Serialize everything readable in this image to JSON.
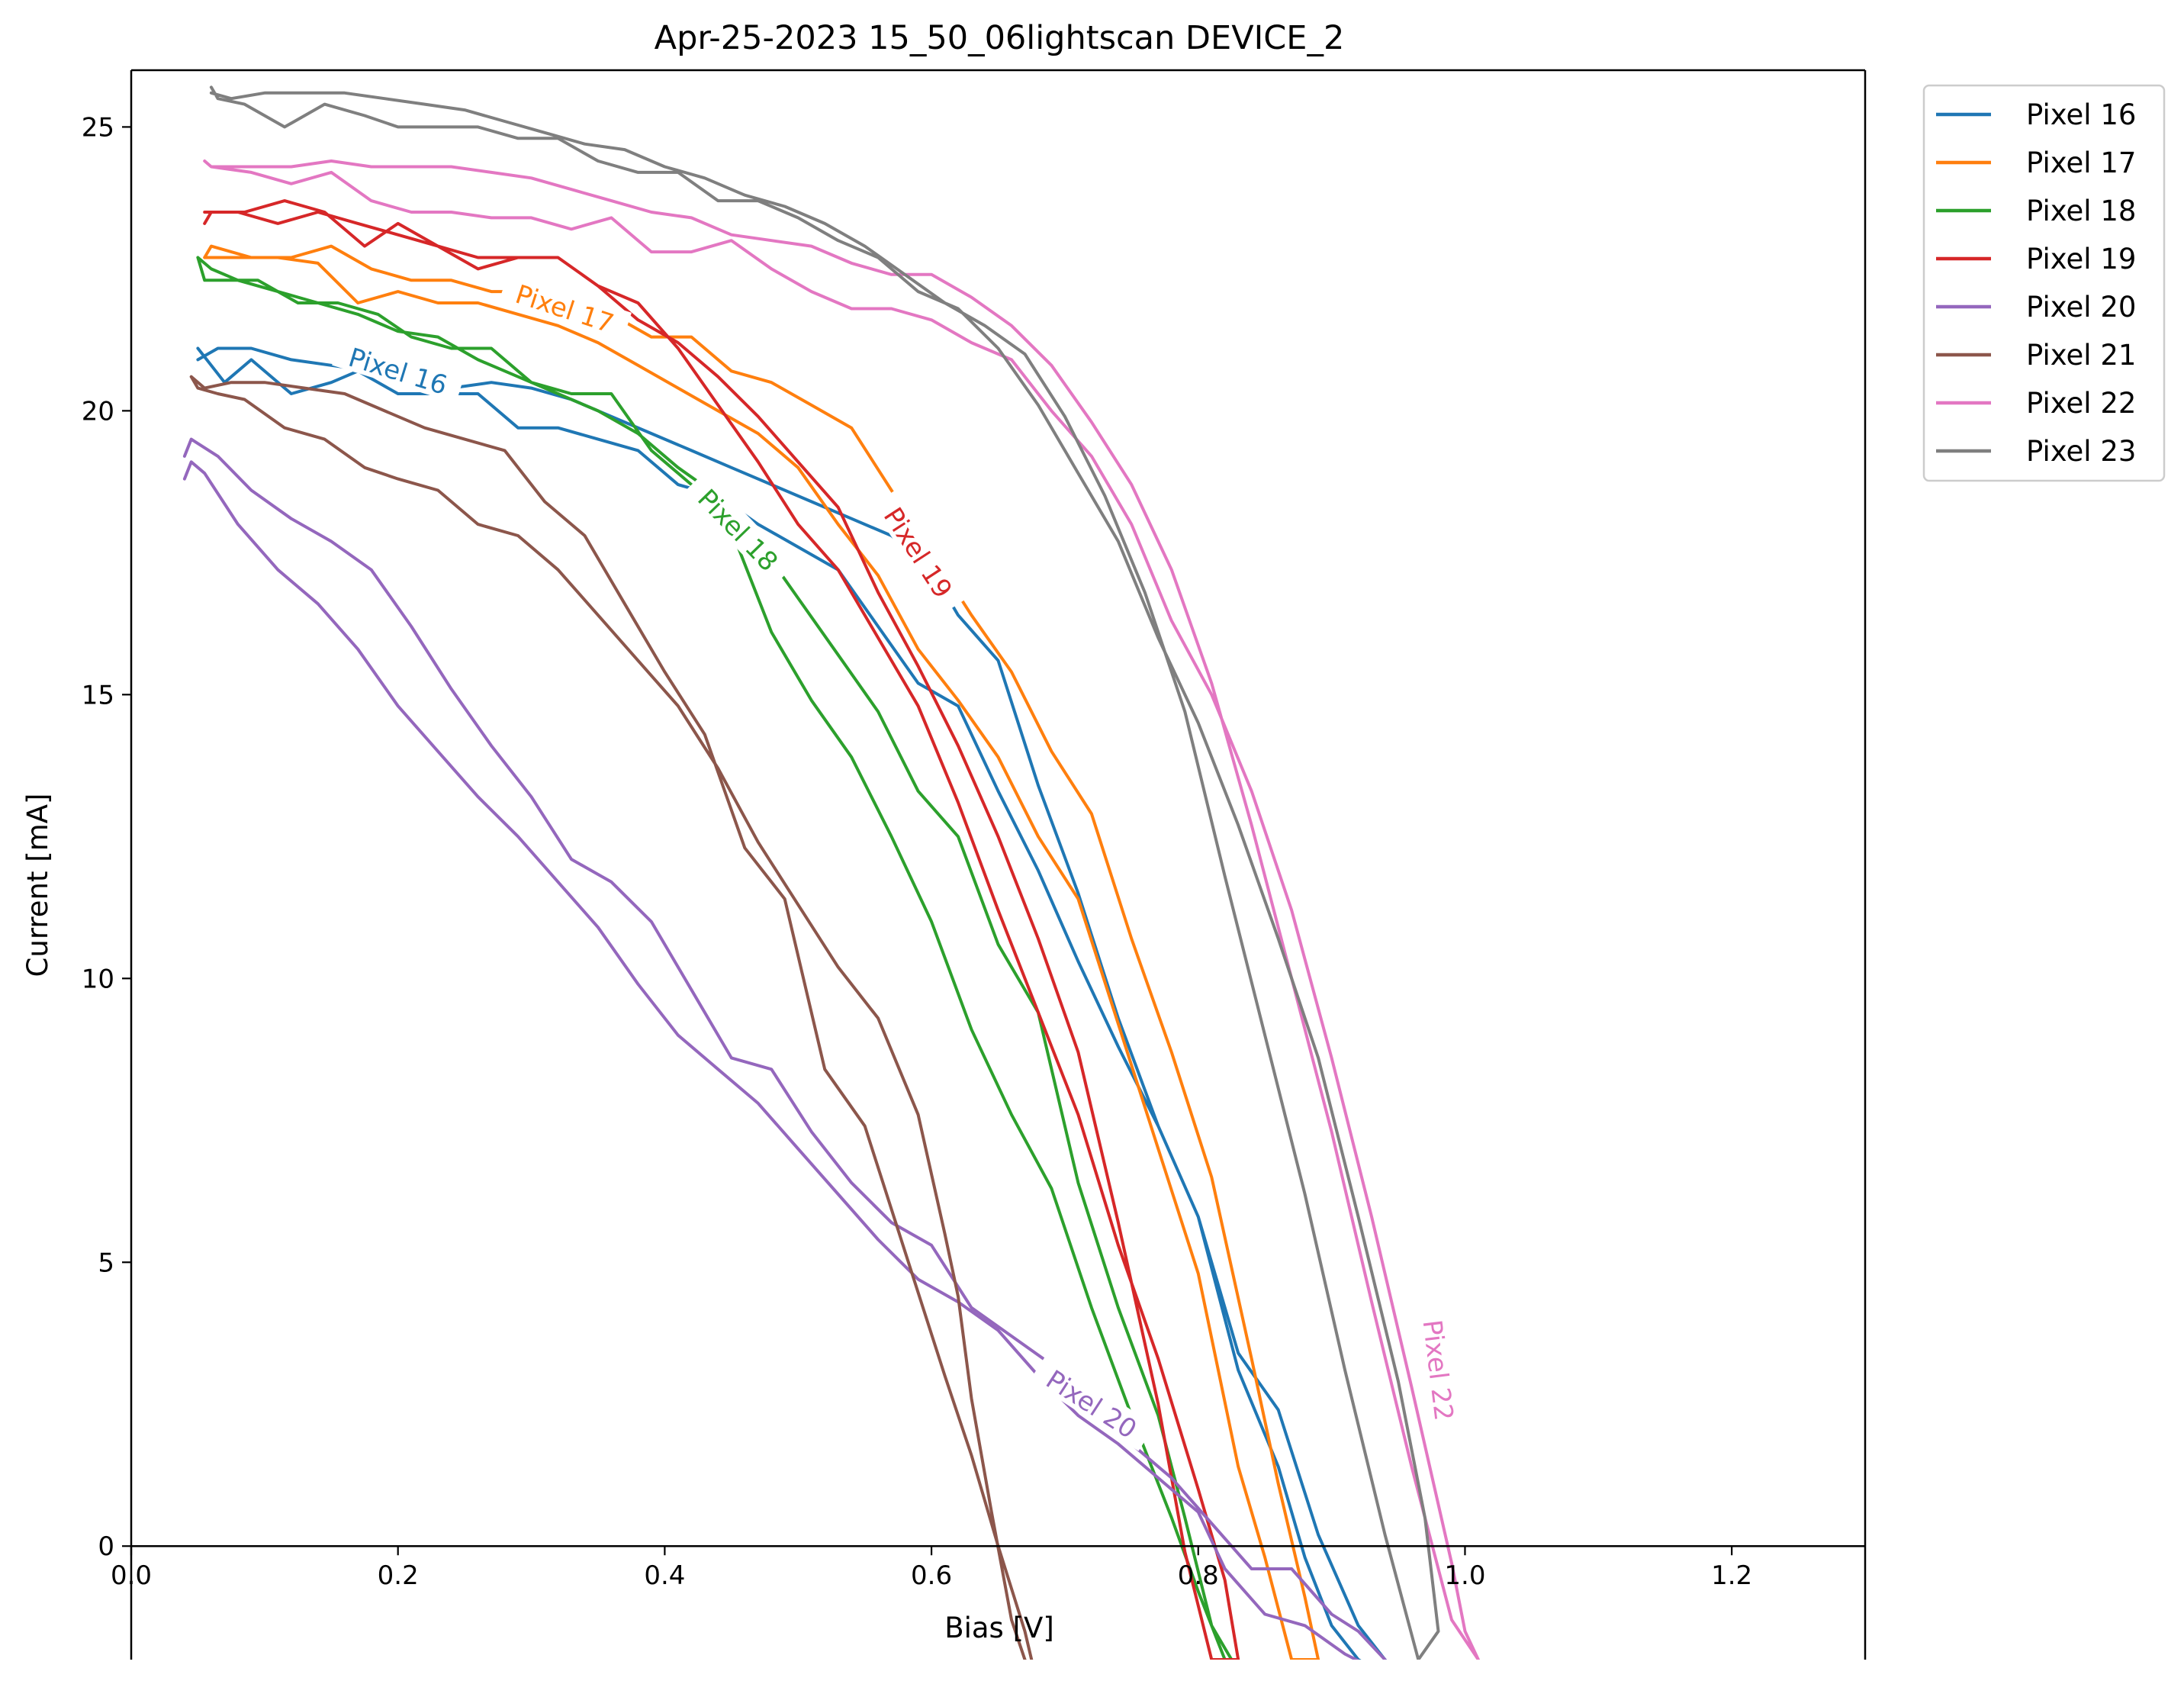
{
  "chart_data": {
    "type": "line",
    "title": "Apr-25-2023 15_50_06lightscan DEVICE_2",
    "xlabel": "Bias [V]",
    "ylabel": "Current [mA]",
    "xlim": [
      0.0,
      1.3
    ],
    "ylim": [
      -2.0,
      26.0
    ],
    "xticks": [
      0.0,
      0.2,
      0.4,
      0.6,
      0.8,
      1.0,
      1.2
    ],
    "xtick_labels": [
      "0.0",
      "0.2",
      "0.4",
      "0.6",
      "0.8",
      "1.0",
      "1.2"
    ],
    "yticks": [
      0,
      5,
      10,
      15,
      20,
      25
    ],
    "ytick_labels": [
      "0",
      "5",
      "10",
      "15",
      "20",
      "25"
    ],
    "grid": false,
    "legend_position": "outside-top-right",
    "series": [
      {
        "name": "Pixel 16",
        "color": "#1f77b4",
        "x": [
          0.05,
          0.06,
          0.07,
          0.09,
          0.12,
          0.15,
          0.17,
          0.2,
          0.23,
          0.26,
          0.29,
          0.32,
          0.35,
          0.38,
          0.41,
          0.44,
          0.47,
          0.5,
          0.53,
          0.56,
          0.59,
          0.62,
          0.65,
          0.68,
          0.71,
          0.74,
          0.77,
          0.8,
          0.83,
          0.86,
          0.88,
          0.9,
          0.92,
          0.935,
          0.95,
          0.92,
          0.89,
          0.86,
          0.83,
          0.8,
          0.77,
          0.74,
          0.71,
          0.68,
          0.65,
          0.62,
          0.6,
          0.57,
          0.54,
          0.51,
          0.48,
          0.45,
          0.42,
          0.39,
          0.36,
          0.33,
          0.3,
          0.27,
          0.24,
          0.21,
          0.18,
          0.15,
          0.12,
          0.09,
          0.065,
          0.05
        ],
        "y": [
          21.1,
          20.8,
          20.5,
          20.9,
          20.3,
          20.5,
          20.7,
          20.3,
          20.3,
          20.3,
          19.7,
          19.7,
          19.5,
          19.3,
          18.7,
          18.5,
          18.0,
          17.6,
          17.2,
          16.2,
          15.2,
          14.8,
          13.3,
          11.9,
          10.3,
          8.8,
          7.4,
          5.8,
          3.1,
          1.4,
          -0.2,
          -1.4,
          -2.0,
          -2.2,
          -2.3,
          -1.4,
          0.2,
          2.4,
          3.4,
          5.8,
          7.4,
          9.3,
          11.5,
          13.4,
          15.6,
          16.4,
          17.2,
          17.8,
          18.1,
          18.4,
          18.7,
          19.0,
          19.3,
          19.6,
          19.9,
          20.2,
          20.4,
          20.5,
          20.4,
          20.6,
          20.7,
          20.8,
          20.9,
          21.1,
          21.1,
          20.9
        ]
      },
      {
        "name": "Pixel 17",
        "color": "#ff7f0e",
        "x": [
          0.055,
          0.06,
          0.09,
          0.12,
          0.15,
          0.18,
          0.21,
          0.24,
          0.27,
          0.3,
          0.33,
          0.36,
          0.39,
          0.42,
          0.45,
          0.48,
          0.51,
          0.54,
          0.57,
          0.6,
          0.63,
          0.66,
          0.69,
          0.72,
          0.75,
          0.78,
          0.81,
          0.84,
          0.86,
          0.88,
          0.89,
          0.87,
          0.85,
          0.83,
          0.8,
          0.77,
          0.74,
          0.71,
          0.68,
          0.65,
          0.62,
          0.59,
          0.56,
          0.53,
          0.5,
          0.47,
          0.44,
          0.41,
          0.38,
          0.35,
          0.32,
          0.29,
          0.26,
          0.23,
          0.2,
          0.17,
          0.14,
          0.11,
          0.08,
          0.06,
          0.055
        ],
        "y": [
          22.7,
          22.9,
          22.7,
          22.7,
          22.9,
          22.5,
          22.3,
          22.3,
          22.1,
          22.1,
          21.9,
          21.7,
          21.3,
          21.3,
          20.7,
          20.5,
          20.1,
          19.7,
          18.6,
          17.5,
          16.4,
          15.4,
          14.0,
          12.9,
          10.7,
          8.7,
          6.5,
          3.3,
          1.1,
          -0.9,
          -2.0,
          -2.0,
          -0.2,
          1.4,
          4.8,
          7.0,
          9.2,
          11.4,
          12.5,
          13.9,
          14.9,
          15.8,
          17.1,
          18.0,
          19.0,
          19.6,
          20.0,
          20.4,
          20.8,
          21.2,
          21.5,
          21.7,
          21.9,
          21.9,
          22.1,
          21.9,
          22.6,
          22.7,
          22.7,
          22.7,
          22.7
        ]
      },
      {
        "name": "Pixel 18",
        "color": "#2ca02c",
        "x": [
          0.05,
          0.055,
          0.065,
          0.095,
          0.125,
          0.155,
          0.185,
          0.21,
          0.24,
          0.27,
          0.3,
          0.33,
          0.36,
          0.39,
          0.42,
          0.45,
          0.48,
          0.51,
          0.54,
          0.57,
          0.6,
          0.63,
          0.66,
          0.69,
          0.72,
          0.75,
          0.78,
          0.8,
          0.82,
          0.83,
          0.81,
          0.79,
          0.77,
          0.74,
          0.71,
          0.68,
          0.65,
          0.62,
          0.59,
          0.56,
          0.53,
          0.5,
          0.47,
          0.44,
          0.41,
          0.38,
          0.35,
          0.32,
          0.29,
          0.26,
          0.23,
          0.2,
          0.17,
          0.14,
          0.11,
          0.08,
          0.06,
          0.05
        ],
        "y": [
          22.7,
          22.3,
          22.3,
          22.3,
          21.9,
          21.9,
          21.7,
          21.3,
          21.1,
          21.1,
          20.5,
          20.3,
          20.3,
          19.3,
          18.7,
          17.9,
          16.1,
          14.9,
          13.9,
          12.5,
          11.0,
          9.1,
          7.6,
          6.3,
          4.2,
          2.3,
          0.5,
          -0.8,
          -2.0,
          -2.2,
          -1.4,
          0.5,
          2.3,
          4.2,
          6.4,
          9.4,
          10.6,
          12.5,
          13.3,
          14.7,
          15.7,
          16.7,
          17.7,
          18.5,
          19.0,
          19.6,
          20.0,
          20.3,
          20.6,
          20.9,
          21.3,
          21.4,
          21.7,
          21.9,
          22.1,
          22.3,
          22.5,
          22.7
        ]
      },
      {
        "name": "Pixel 19",
        "color": "#d62728",
        "x": [
          0.055,
          0.06,
          0.085,
          0.115,
          0.145,
          0.175,
          0.2,
          0.23,
          0.26,
          0.29,
          0.32,
          0.35,
          0.38,
          0.41,
          0.44,
          0.47,
          0.5,
          0.53,
          0.56,
          0.59,
          0.62,
          0.65,
          0.68,
          0.71,
          0.74,
          0.77,
          0.8,
          0.82,
          0.83,
          0.81,
          0.79,
          0.77,
          0.74,
          0.71,
          0.68,
          0.65,
          0.62,
          0.59,
          0.56,
          0.53,
          0.5,
          0.47,
          0.44,
          0.41,
          0.38,
          0.35,
          0.32,
          0.29,
          0.26,
          0.23,
          0.2,
          0.17,
          0.14,
          0.11,
          0.08,
          0.06,
          0.055
        ],
        "y": [
          23.3,
          23.5,
          23.5,
          23.7,
          23.5,
          22.9,
          23.3,
          22.9,
          22.7,
          22.7,
          22.7,
          22.2,
          21.9,
          21.1,
          20.1,
          19.1,
          18.0,
          17.2,
          16.0,
          14.8,
          13.1,
          11.2,
          9.4,
          7.6,
          5.3,
          3.3,
          1.0,
          -0.6,
          -2.0,
          -2.0,
          -0.1,
          2.5,
          5.7,
          8.7,
          10.7,
          12.5,
          14.1,
          15.5,
          16.8,
          18.3,
          19.1,
          19.9,
          20.6,
          21.2,
          21.6,
          22.2,
          22.7,
          22.7,
          22.5,
          22.9,
          23.1,
          23.3,
          23.5,
          23.3,
          23.5,
          23.5,
          23.5
        ]
      },
      {
        "name": "Pixel 20",
        "color": "#9467bd",
        "x": [
          0.04,
          0.045,
          0.055,
          0.08,
          0.11,
          0.14,
          0.17,
          0.2,
          0.23,
          0.26,
          0.29,
          0.32,
          0.35,
          0.38,
          0.41,
          0.44,
          0.47,
          0.5,
          0.53,
          0.56,
          0.59,
          0.62,
          0.65,
          0.68,
          0.71,
          0.74,
          0.77,
          0.8,
          0.82,
          0.85,
          0.88,
          0.91,
          0.935,
          0.94,
          0.92,
          0.9,
          0.87,
          0.84,
          0.81,
          0.78,
          0.75,
          0.72,
          0.69,
          0.66,
          0.63,
          0.6,
          0.57,
          0.54,
          0.51,
          0.48,
          0.45,
          0.42,
          0.39,
          0.36,
          0.33,
          0.3,
          0.27,
          0.24,
          0.21,
          0.18,
          0.15,
          0.12,
          0.09,
          0.065,
          0.045,
          0.04
        ],
        "y": [
          18.8,
          19.1,
          18.9,
          18.0,
          17.2,
          16.6,
          15.8,
          14.8,
          14.0,
          13.2,
          12.5,
          11.7,
          10.9,
          9.9,
          9.0,
          8.4,
          7.8,
          7.0,
          6.2,
          5.4,
          4.7,
          4.3,
          3.8,
          3.0,
          2.3,
          1.8,
          1.2,
          0.6,
          -0.4,
          -1.2,
          -1.4,
          -1.9,
          -2.2,
          -2.0,
          -1.5,
          -1.2,
          -0.4,
          -0.4,
          0.4,
          1.2,
          1.8,
          2.3,
          3.2,
          3.7,
          4.2,
          5.3,
          5.7,
          6.4,
          7.3,
          8.4,
          8.6,
          9.8,
          11.0,
          11.7,
          12.1,
          13.2,
          14.1,
          15.1,
          16.2,
          17.2,
          17.7,
          18.1,
          18.6,
          19.2,
          19.5,
          19.2
        ]
      },
      {
        "name": "Pixel 21",
        "color": "#8c564b",
        "x": [
          0.045,
          0.05,
          0.065,
          0.085,
          0.115,
          0.145,
          0.175,
          0.2,
          0.23,
          0.26,
          0.29,
          0.32,
          0.35,
          0.38,
          0.41,
          0.44,
          0.47,
          0.5,
          0.53,
          0.56,
          0.59,
          0.61,
          0.62,
          0.63,
          0.645,
          0.66,
          0.67,
          0.68,
          0.67,
          0.65,
          0.63,
          0.61,
          0.58,
          0.55,
          0.52,
          0.49,
          0.46,
          0.43,
          0.4,
          0.37,
          0.34,
          0.31,
          0.28,
          0.25,
          0.22,
          0.19,
          0.16,
          0.13,
          0.1,
          0.075,
          0.055,
          0.045
        ],
        "y": [
          20.6,
          20.4,
          20.3,
          20.2,
          19.7,
          19.5,
          19.0,
          18.8,
          18.6,
          18.0,
          17.8,
          17.2,
          16.4,
          15.6,
          14.8,
          13.7,
          12.4,
          11.3,
          10.2,
          9.3,
          7.6,
          5.5,
          4.4,
          2.6,
          0.6,
          -1.3,
          -2.0,
          -2.5,
          -1.5,
          0.0,
          1.6,
          3.0,
          5.2,
          7.4,
          8.4,
          11.4,
          12.3,
          14.3,
          15.4,
          16.6,
          17.8,
          18.4,
          19.3,
          19.5,
          19.7,
          20.0,
          20.3,
          20.4,
          20.5,
          20.5,
          20.4,
          20.6
        ]
      },
      {
        "name": "Pixel 22",
        "color": "#e377c2",
        "x": [
          0.055,
          0.06,
          0.09,
          0.12,
          0.15,
          0.18,
          0.21,
          0.24,
          0.27,
          0.3,
          0.33,
          0.36,
          0.39,
          0.42,
          0.45,
          0.48,
          0.51,
          0.54,
          0.57,
          0.6,
          0.63,
          0.66,
          0.69,
          0.72,
          0.75,
          0.78,
          0.81,
          0.84,
          0.87,
          0.9,
          0.93,
          0.96,
          0.99,
          1.0,
          1.01,
          0.99,
          0.96,
          0.93,
          0.9,
          0.87,
          0.84,
          0.81,
          0.78,
          0.75,
          0.72,
          0.69,
          0.66,
          0.63,
          0.6,
          0.57,
          0.54,
          0.51,
          0.48,
          0.45,
          0.42,
          0.39,
          0.36,
          0.33,
          0.3,
          0.27,
          0.24,
          0.21,
          0.18,
          0.15,
          0.12,
          0.09,
          0.06,
          0.055
        ],
        "y": [
          24.4,
          24.3,
          24.2,
          24.0,
          24.2,
          23.7,
          23.5,
          23.5,
          23.4,
          23.4,
          23.2,
          23.4,
          22.8,
          22.8,
          23.0,
          22.5,
          22.1,
          21.8,
          21.8,
          21.6,
          21.2,
          20.9,
          20.0,
          19.2,
          18.0,
          16.3,
          15.0,
          13.3,
          11.2,
          8.6,
          5.8,
          2.8,
          -0.3,
          -1.5,
          -2.0,
          -1.3,
          1.4,
          4.3,
          7.3,
          10.0,
          12.7,
          15.2,
          17.2,
          18.7,
          19.8,
          20.8,
          21.5,
          22.0,
          22.4,
          22.4,
          22.6,
          22.9,
          23.0,
          23.1,
          23.4,
          23.5,
          23.7,
          23.9,
          24.1,
          24.2,
          24.3,
          24.3,
          24.3,
          24.4,
          24.3,
          24.3,
          24.3,
          24.4
        ]
      },
      {
        "name": "Pixel 23",
        "color": "#7f7f7f",
        "x": [
          0.06,
          0.065,
          0.085,
          0.115,
          0.145,
          0.175,
          0.2,
          0.23,
          0.26,
          0.29,
          0.32,
          0.35,
          0.38,
          0.41,
          0.44,
          0.47,
          0.5,
          0.53,
          0.56,
          0.59,
          0.62,
          0.65,
          0.68,
          0.71,
          0.74,
          0.77,
          0.8,
          0.83,
          0.86,
          0.89,
          0.92,
          0.95,
          0.97,
          0.98,
          0.965,
          0.94,
          0.91,
          0.88,
          0.85,
          0.82,
          0.79,
          0.76,
          0.73,
          0.7,
          0.67,
          0.64,
          0.61,
          0.58,
          0.55,
          0.52,
          0.49,
          0.46,
          0.43,
          0.4,
          0.37,
          0.34,
          0.31,
          0.28,
          0.25,
          0.22,
          0.19,
          0.16,
          0.13,
          0.1,
          0.075,
          0.06
        ],
        "y": [
          25.7,
          25.5,
          25.4,
          25.0,
          25.4,
          25.2,
          25.0,
          25.0,
          25.0,
          24.8,
          24.8,
          24.4,
          24.2,
          24.2,
          23.7,
          23.7,
          23.4,
          23.0,
          22.7,
          22.1,
          21.8,
          21.1,
          20.1,
          18.9,
          17.7,
          16.0,
          14.5,
          12.7,
          10.7,
          8.6,
          5.8,
          2.9,
          0.5,
          -1.5,
          -2.0,
          0.2,
          3.1,
          6.2,
          9.0,
          11.8,
          14.7,
          16.8,
          18.5,
          19.9,
          21.0,
          21.5,
          21.9,
          22.4,
          22.9,
          23.3,
          23.6,
          23.8,
          24.1,
          24.3,
          24.6,
          24.7,
          24.9,
          25.1,
          25.3,
          25.4,
          25.5,
          25.6,
          25.6,
          25.6,
          25.5,
          25.6
        ]
      }
    ],
    "inline_labels": [
      {
        "text": "Pixel 16",
        "series": 0,
        "x": 0.2,
        "y": 20.7,
        "angle": 17
      },
      {
        "text": "Pixel 17",
        "series": 1,
        "x": 0.325,
        "y": 21.8,
        "angle": 18
      },
      {
        "text": "Pixel 18",
        "series": 2,
        "x": 0.455,
        "y": 17.9,
        "angle": 46
      },
      {
        "text": "Pixel 19",
        "series": 3,
        "x": 0.59,
        "y": 17.5,
        "angle": 57
      },
      {
        "text": "Pixel 20",
        "series": 4,
        "x": 0.72,
        "y": 2.5,
        "angle": 33
      },
      {
        "text": "Pixel 22",
        "series": 6,
        "x": 0.98,
        "y": 3.1,
        "angle": 83
      }
    ]
  }
}
